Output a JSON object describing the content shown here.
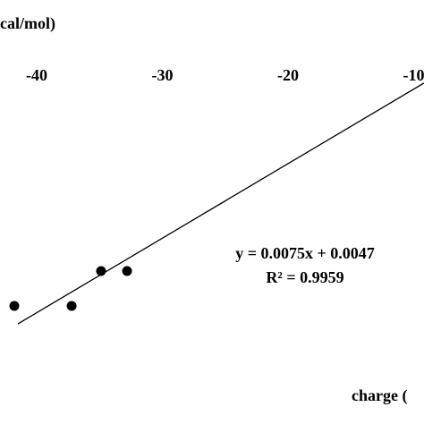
{
  "chart_data": {
    "type": "scatter",
    "y_label": "cal/mol)",
    "x_label": "charge (",
    "x": [
      -41.78,
      -37.22,
      -34.88,
      -32.81
    ],
    "values": [
      -0.2885,
      -0.2885,
      -0.2534,
      -0.2534
    ],
    "color": "#000000",
    "xlim": [
      -42.92,
      -9.18
    ],
    "ylim": [
      -0.4073,
      0.0194
    ],
    "xticks": [
      -40,
      -30,
      -20,
      -10
    ],
    "trendline": {
      "equation": "y = 0.0075x + 0.0047",
      "r2": "R² = 0.9959",
      "slope": 0.0075,
      "intercept": 0.0047
    }
  }
}
